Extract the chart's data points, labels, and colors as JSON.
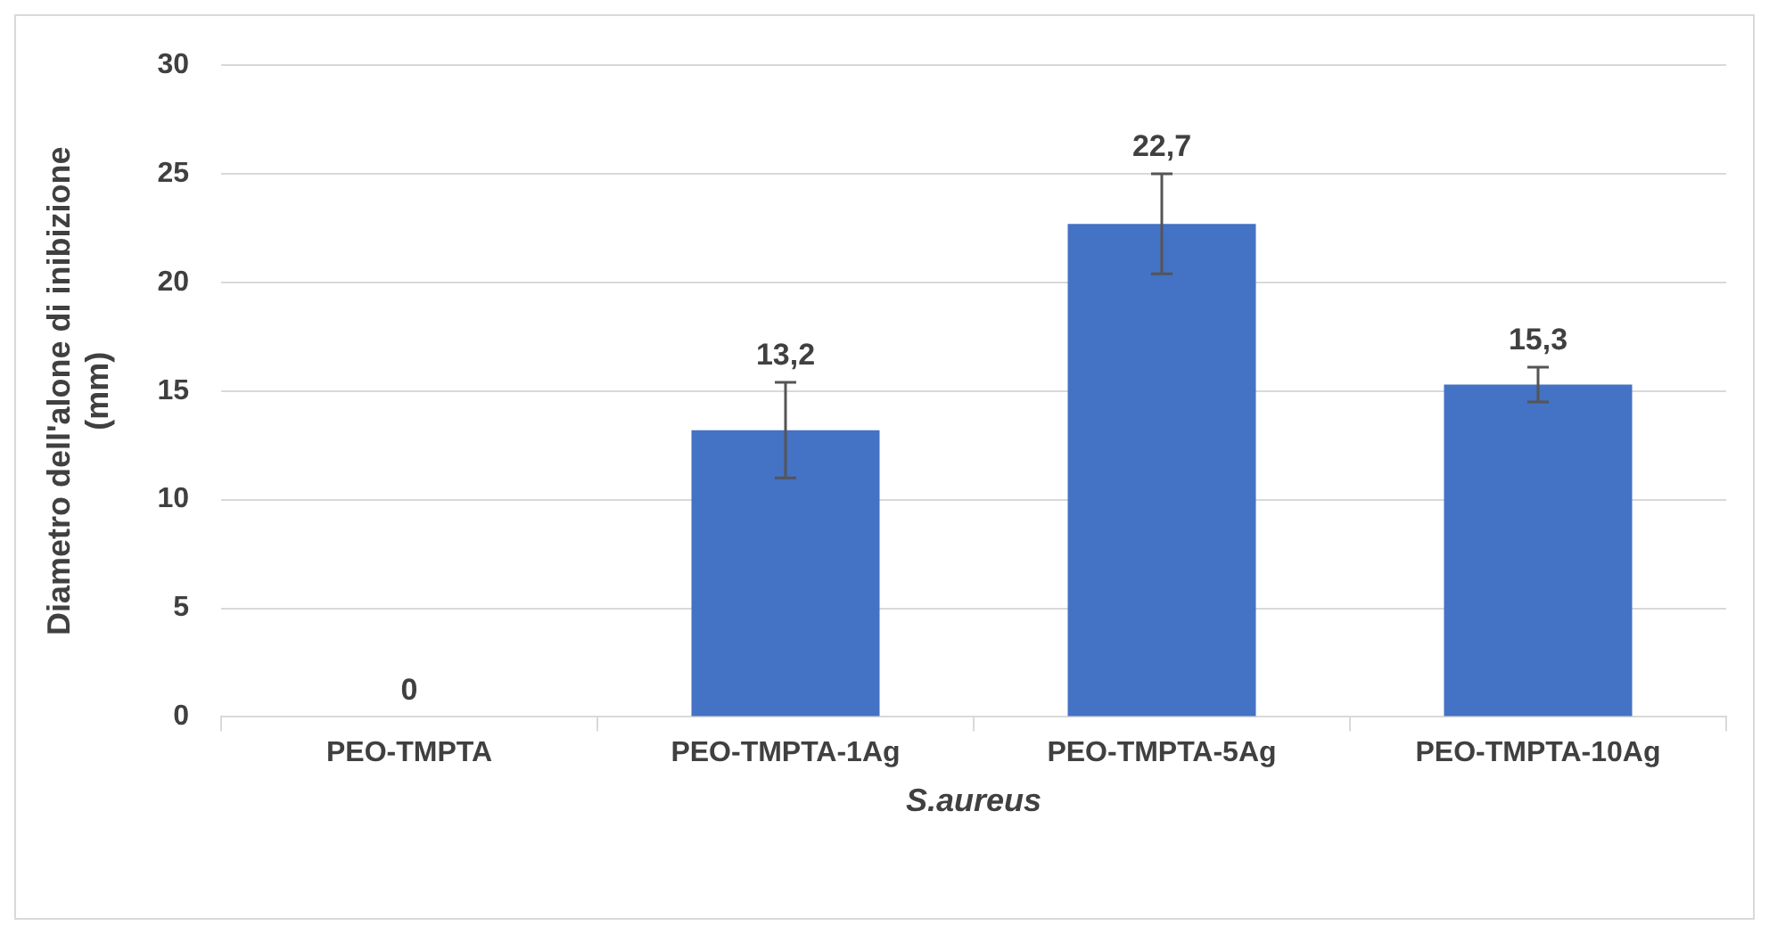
{
  "chart_data": {
    "type": "bar",
    "categories": [
      "PEO-TMPTA",
      "PEO-TMPTA-1Ag",
      "PEO-TMPTA-5Ag",
      "PEO-TMPTA-10Ag"
    ],
    "values": [
      0,
      13.2,
      22.7,
      15.3
    ],
    "errors": [
      null,
      2.2,
      2.3,
      0.8
    ],
    "value_labels": [
      "0",
      "13,2",
      "22,7",
      "15,3"
    ],
    "color": "#4472c4",
    "xlabel": "S.aureus",
    "ylabel": "Diametro dell'alone di inibizione\n(mm)",
    "ylim": [
      0,
      30
    ],
    "yticks": [
      0,
      5,
      10,
      15,
      20,
      25,
      30
    ],
    "grid": "y",
    "legend": false
  }
}
